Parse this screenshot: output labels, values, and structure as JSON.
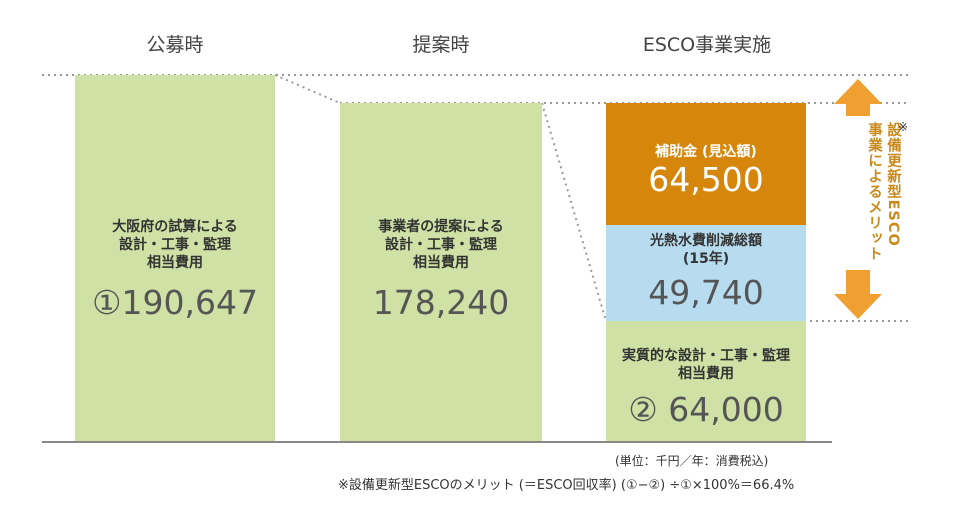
{
  "headers": [
    "公募時",
    "提案時",
    "ESCO事業実施"
  ],
  "bars": [
    {
      "label_lines": [
        "大阪府の試算による",
        "設計・工事・監理",
        "相当費用"
      ],
      "value": "①190,647"
    },
    {
      "label_lines": [
        "事業者の提案による",
        "設計・工事・監理",
        "相当費用"
      ],
      "value": "178,240"
    },
    {
      "label_lines": [
        "実質的な設計・工事・監理",
        "相当費用"
      ],
      "value": "② 64,000"
    }
  ],
  "segments": {
    "subsidy": {
      "label": "補助金 (見込額)",
      "value": "64,500"
    },
    "savings": {
      "label_lines": [
        "光熱水費削減総額",
        "(15年)"
      ],
      "value": "49,740"
    }
  },
  "merit_label": "設備更新型ESCO事業によるメリット",
  "note_mark": "※",
  "unit_note": "(単位：千円／年：消費税込)",
  "footnote": "※設備更新型ESCOのメリット (＝ESCO回収率) (①−②) ÷①×100%＝66.4%",
  "colors": {
    "bar": "#cfe1a4",
    "subsidy": "#d5860b",
    "savings": "#b7dcef",
    "arrow": "#f0a030"
  },
  "chart_data": {
    "type": "bar",
    "title": "",
    "categories": [
      "公募時",
      "提案時",
      "ESCO事業実施"
    ],
    "series": [
      {
        "name": "設計・工事・監理相当費用",
        "values": [
          190647,
          178240,
          64000
        ]
      },
      {
        "name": "光熱水費削減総額 (15年)",
        "values": [
          0,
          0,
          49740
        ]
      },
      {
        "name": "補助金 (見込額)",
        "values": [
          0,
          0,
          64500
        ]
      }
    ],
    "stacked": true,
    "unit": "千円",
    "legend": "none",
    "grid": false
  }
}
